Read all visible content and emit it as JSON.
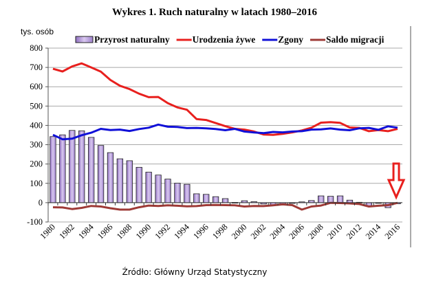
{
  "chart_data": {
    "type": "bar+line",
    "title": "Wykres 1. Ruch naturalny w latach 1980–2016",
    "ylabel": "tys. osób",
    "xlabel": "",
    "ylim": [
      -100,
      800
    ],
    "yticks": [
      -100,
      0,
      100,
      200,
      300,
      400,
      500,
      600,
      700,
      800
    ],
    "grid": true,
    "legend": "top",
    "x": [
      1980,
      1981,
      1982,
      1983,
      1984,
      1985,
      1986,
      1987,
      1988,
      1989,
      1990,
      1991,
      1992,
      1993,
      1994,
      1995,
      1996,
      1997,
      1998,
      1999,
      2000,
      2001,
      2002,
      2003,
      2004,
      2005,
      2006,
      2007,
      2008,
      2009,
      2010,
      2011,
      2012,
      2013,
      2014,
      2015,
      2016
    ],
    "xtick_labels": [
      "1980",
      "1982",
      "1984",
      "1986",
      "1988",
      "1990",
      "1992",
      "1994",
      "1996",
      "1998",
      "2000",
      "2002",
      "2004",
      "2006",
      "2008",
      "2010",
      "2012",
      "2014",
      "2016"
    ],
    "series": [
      {
        "name": "Przyrost naturalny",
        "kind": "bar",
        "color": "#b79fdc",
        "values": [
          342,
          351,
          374,
          372,
          338,
          296,
          259,
          227,
          217,
          183,
          158,
          143,
          122,
          101,
          95,
          46,
          43,
          31,
          21,
          1,
          10,
          5,
          -7,
          -14,
          -8,
          -4,
          4,
          11,
          35,
          33,
          35,
          13,
          2,
          -18,
          -1,
          -26,
          -6
        ]
      },
      {
        "name": "Urodzenia żywe",
        "kind": "line",
        "color": "#e8201e",
        "values": [
          693,
          679,
          705,
          721,
          700,
          678,
          635,
          605,
          588,
          564,
          546,
          547,
          515,
          493,
          481,
          433,
          428,
          412,
          396,
          382,
          378,
          368,
          353,
          351,
          356,
          364,
          374,
          388,
          414,
          417,
          413,
          389,
          387,
          370,
          376,
          370,
          382
        ]
      },
      {
        "name": "Zgony",
        "kind": "line",
        "color": "#1010d8",
        "values": [
          351,
          328,
          331,
          349,
          362,
          382,
          376,
          378,
          371,
          381,
          388,
          404,
          393,
          392,
          386,
          387,
          385,
          381,
          375,
          382,
          368,
          363,
          360,
          366,
          364,
          368,
          370,
          378,
          379,
          384,
          378,
          375,
          385,
          387,
          377,
          395,
          388
        ]
      },
      {
        "name": "Saldo migracji",
        "kind": "line",
        "color": "#9e3a36",
        "values": [
          -24,
          -25,
          -33,
          -27,
          -17,
          -20,
          -29,
          -36,
          -36,
          -24,
          -15,
          -17,
          -14,
          -16,
          -19,
          -18,
          -13,
          -12,
          -13,
          -14,
          -20,
          -17,
          -18,
          -14,
          -9,
          -13,
          -36,
          -20,
          -15,
          -1,
          -2,
          -4,
          -7,
          -20,
          -16,
          -13,
          -1
        ]
      }
    ],
    "annotation": {
      "type": "arrow",
      "target_year": 2016,
      "color": "#e8201e"
    }
  },
  "source": "Źródło: Główny Urząd Statystyczny"
}
